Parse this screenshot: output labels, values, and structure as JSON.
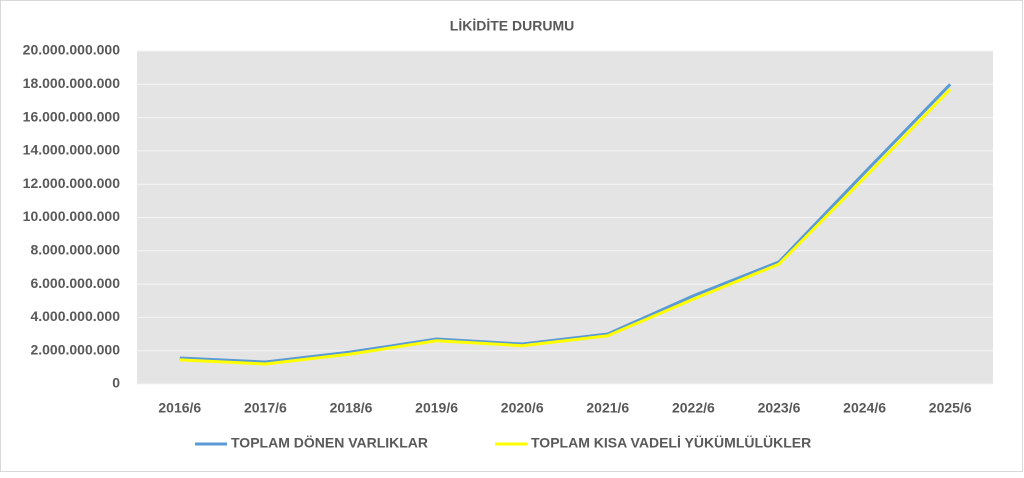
{
  "chart_data": {
    "type": "line",
    "title": "LİKİDİTE DURUMU",
    "categories": [
      "2016/6",
      "2017/6",
      "2018/6",
      "2019/6",
      "2020/6",
      "2021/6",
      "2022/6",
      "2023/6",
      "2024/6",
      "2025/6"
    ],
    "series": [
      {
        "name": "TOPLAM DÖNEN VARLIKLAR",
        "color": "#5b9bd5",
        "values": [
          1560000000,
          1320000000,
          1920000000,
          2700000000,
          2400000000,
          3000000000,
          5300000000,
          7330000000,
          12700000000,
          18000000000
        ]
      },
      {
        "name": "TOPLAM KISA VADELİ YÜKÜMLÜLÜKLER",
        "color": "#ffff00",
        "values": [
          1450000000,
          1200000000,
          1800000000,
          2600000000,
          2300000000,
          2900000000,
          5100000000,
          7200000000,
          12400000000,
          17700000000
        ]
      }
    ],
    "ylim": [
      0,
      20000000000
    ],
    "yticks": [
      0,
      {
        "value": 2000000000,
        "label": "2.000.000.000"
      },
      {
        "value": 4000000000,
        "label": "4.000.000.000"
      },
      {
        "value": 6000000000,
        "label": "6.000.000.000"
      },
      {
        "value": 8000000000,
        "label": "8.000.000.000"
      },
      {
        "value": 10000000000,
        "label": "10.000.000.000"
      },
      {
        "value": 12000000000,
        "label": "12.000.000.000"
      },
      {
        "value": 14000000000,
        "label": "14.000.000.000"
      },
      {
        "value": 16000000000,
        "label": "16.000.000.000"
      },
      {
        "value": 18000000000,
        "label": "18.000.000.000"
      },
      {
        "value": 20000000000,
        "label": "20.000.000.000"
      }
    ],
    "grid": true,
    "legend": "bottom"
  }
}
